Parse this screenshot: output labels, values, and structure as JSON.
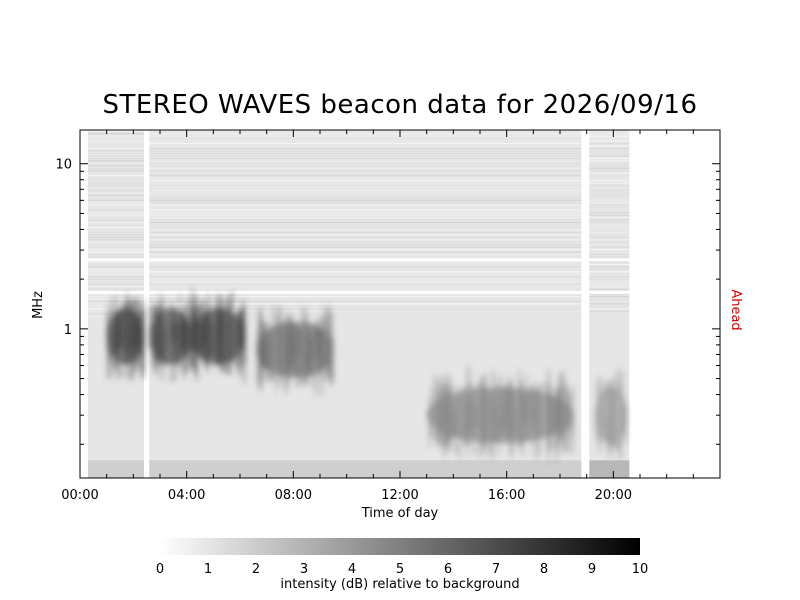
{
  "chart_data": {
    "type": "heatmap",
    "title": "STEREO WAVES beacon data for 2026/09/16",
    "xlabel": "Time of day",
    "ylabel": "MHz",
    "right_label": "Ahead",
    "right_label_color": "#cc0000",
    "x_range_hours": [
      0,
      24
    ],
    "x_ticks": [
      "00:00",
      "04:00",
      "08:00",
      "12:00",
      "16:00",
      "20:00"
    ],
    "x_tick_hours": [
      0,
      4,
      8,
      12,
      16,
      20
    ],
    "y_scale": "log",
    "y_range_mhz": [
      0.125,
      16
    ],
    "y_ticks": [
      "1",
      "10"
    ],
    "y_tick_values": [
      1,
      10
    ],
    "data_coverage_hours": [
      [
        0.3,
        2.4
      ],
      [
        2.6,
        18.8
      ],
      [
        19.1,
        20.6
      ]
    ],
    "intensity_features": [
      {
        "start_hour": 1.0,
        "end_hour": 2.4,
        "center_mhz": 0.9,
        "peak_db": 9
      },
      {
        "start_hour": 2.6,
        "end_hour": 4.2,
        "center_mhz": 0.9,
        "peak_db": 9
      },
      {
        "start_hour": 4.2,
        "end_hour": 6.2,
        "center_mhz": 0.9,
        "peak_db": 9
      },
      {
        "start_hour": 6.6,
        "end_hour": 9.5,
        "center_mhz": 0.75,
        "peak_db": 7
      },
      {
        "start_hour": 13.0,
        "end_hour": 18.5,
        "center_mhz": 0.3,
        "peak_db": 6
      },
      {
        "start_hour": 19.3,
        "end_hour": 20.5,
        "center_mhz": 0.3,
        "peak_db": 5
      }
    ],
    "colorbar": {
      "label": "intensity (dB) relative to background",
      "ticks": [
        "0",
        "1",
        "2",
        "3",
        "4",
        "5",
        "6",
        "7",
        "8",
        "9",
        "10"
      ],
      "range_db": [
        0,
        10
      ],
      "color_low": "#ffffff",
      "color_high": "#000000"
    }
  }
}
